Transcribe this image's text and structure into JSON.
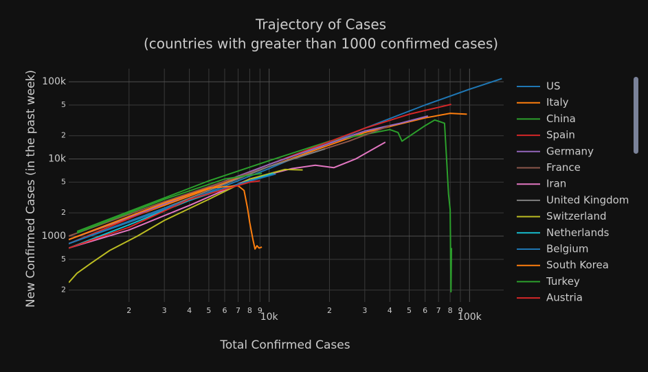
{
  "chart_data": {
    "type": "line",
    "title": "Trajectory of Cases",
    "subtitle": "(countries with greater than 1000 confirmed cases)",
    "x_label": "Total Confirmed Cases",
    "y_label": "New Confirmed Cases (in the past week)",
    "log_x": true,
    "log_y": true,
    "grid": true,
    "legend": "right",
    "xlim": [
      1000,
      148000
    ],
    "ylim": [
      140,
      148000
    ],
    "xticks": [
      {
        "value": 2000,
        "label": "2"
      },
      {
        "value": 3000,
        "label": "3"
      },
      {
        "value": 4000,
        "label": "4"
      },
      {
        "value": 5000,
        "label": "5"
      },
      {
        "value": 6000,
        "label": "6"
      },
      {
        "value": 7000,
        "label": "7"
      },
      {
        "value": 8000,
        "label": "8"
      },
      {
        "value": 9000,
        "label": "9"
      },
      {
        "value": 10000,
        "label": "10k"
      },
      {
        "value": 20000,
        "label": "2"
      },
      {
        "value": 30000,
        "label": "3"
      },
      {
        "value": 40000,
        "label": "4"
      },
      {
        "value": 50000,
        "label": "5"
      },
      {
        "value": 60000,
        "label": "6"
      },
      {
        "value": 70000,
        "label": "7"
      },
      {
        "value": 80000,
        "label": "8"
      },
      {
        "value": 90000,
        "label": "9"
      },
      {
        "value": 100000,
        "label": "100k"
      }
    ],
    "yticks": [
      {
        "value": 200,
        "label": "2"
      },
      {
        "value": 500,
        "label": "5"
      },
      1000,
      {
        "value": 2000,
        "label": "2"
      },
      {
        "value": 5000,
        "label": "5"
      },
      {
        "value": 10000,
        "label": "10k"
      },
      {
        "value": 20000,
        "label": "2"
      },
      {
        "value": 50000,
        "label": "5"
      },
      {
        "value": 100000,
        "label": "100k"
      }
    ],
    "series": [
      {
        "name": "US",
        "color": "#1f77b4",
        "x": [
          1000,
          3000,
          10000,
          30000,
          60000,
          100000,
          145000
        ],
        "values": [
          800,
          2200,
          7500,
          25000,
          50000,
          80000,
          110000
        ]
      },
      {
        "name": "Italy",
        "color": "#ff7f0e",
        "x": [
          1000,
          3000,
          10000,
          30000,
          60000,
          80000,
          97000
        ],
        "values": [
          900,
          2500,
          8000,
          22000,
          34000,
          39000,
          38000
        ]
      },
      {
        "name": "China",
        "color": "#2ca02c",
        "x": [
          1100,
          5000,
          10000,
          20000,
          40000,
          44000,
          46000,
          60000,
          67000,
          75000,
          77000,
          78500,
          80000,
          80800,
          81200
        ],
        "values": [
          1150,
          5200,
          9500,
          17000,
          24000,
          22000,
          17000,
          27000,
          32000,
          29000,
          9000,
          3500,
          2200,
          190,
          700
        ]
      },
      {
        "name": "Spain",
        "color": "#d62728",
        "x": [
          1000,
          3000,
          10000,
          30000,
          50000,
          81000
        ],
        "values": [
          800,
          2600,
          8500,
          25000,
          38000,
          51000
        ]
      },
      {
        "name": "Germany",
        "color": "#9467bd",
        "x": [
          1000,
          3000,
          10000,
          30000,
          45000,
          62000
        ],
        "values": [
          900,
          2600,
          8500,
          23000,
          29000,
          36000
        ]
      },
      {
        "name": "France",
        "color": "#8c564b",
        "x": [
          1000,
          3000,
          10000,
          25000,
          40000
        ],
        "values": [
          1000,
          2800,
          8000,
          17000,
          27000
        ]
      },
      {
        "name": "Iran",
        "color": "#e377c2",
        "x": [
          1000,
          2000,
          4000,
          8000,
          13000,
          17000,
          21000,
          27000,
          38000
        ],
        "values": [
          700,
          1200,
          2500,
          5500,
          7500,
          8300,
          7700,
          10000,
          16500
        ]
      },
      {
        "name": "United Kingdom",
        "color": "#7f7f7f",
        "x": [
          1000,
          3000,
          10000,
          19000
        ],
        "values": [
          800,
          2300,
          8000,
          13500
        ]
      },
      {
        "name": "Switzerland",
        "color": "#bcbd22",
        "x": [
          1000,
          1100,
          1300,
          1600,
          2200,
          3000,
          5000,
          8000,
          12000,
          14700
        ],
        "values": [
          250,
          330,
          450,
          650,
          1000,
          1600,
          3000,
          5500,
          7300,
          7200
        ]
      },
      {
        "name": "Netherlands",
        "color": "#17becf",
        "x": [
          1000,
          2000,
          4000,
          7000,
          10500
        ],
        "values": [
          700,
          1400,
          2900,
          4700,
          6500
        ]
      },
      {
        "name": "Belgium",
        "color": "#1f77b4",
        "x": [
          1000,
          3000,
          6000,
          10800
        ],
        "values": [
          800,
          2300,
          4200,
          6400
        ]
      },
      {
        "name": "South Korea",
        "color": "#ff7f0e",
        "x": [
          1000,
          3000,
          5000,
          7000,
          7500,
          7800,
          8000,
          8300,
          8500,
          8700,
          8900,
          9200
        ],
        "values": [
          900,
          2700,
          4200,
          4500,
          3900,
          2300,
          1500,
          900,
          680,
          750,
          700,
          720
        ]
      },
      {
        "name": "Turkey",
        "color": "#2ca02c",
        "x": [
          1100,
          3000,
          6000,
          9200
        ],
        "values": [
          1100,
          3000,
          5500,
          6500
        ]
      },
      {
        "name": "Austria",
        "color": "#d62728",
        "x": [
          1000,
          2000,
          4000,
          8000,
          9000
        ],
        "values": [
          700,
          1300,
          3000,
          5000,
          5200
        ]
      }
    ]
  }
}
